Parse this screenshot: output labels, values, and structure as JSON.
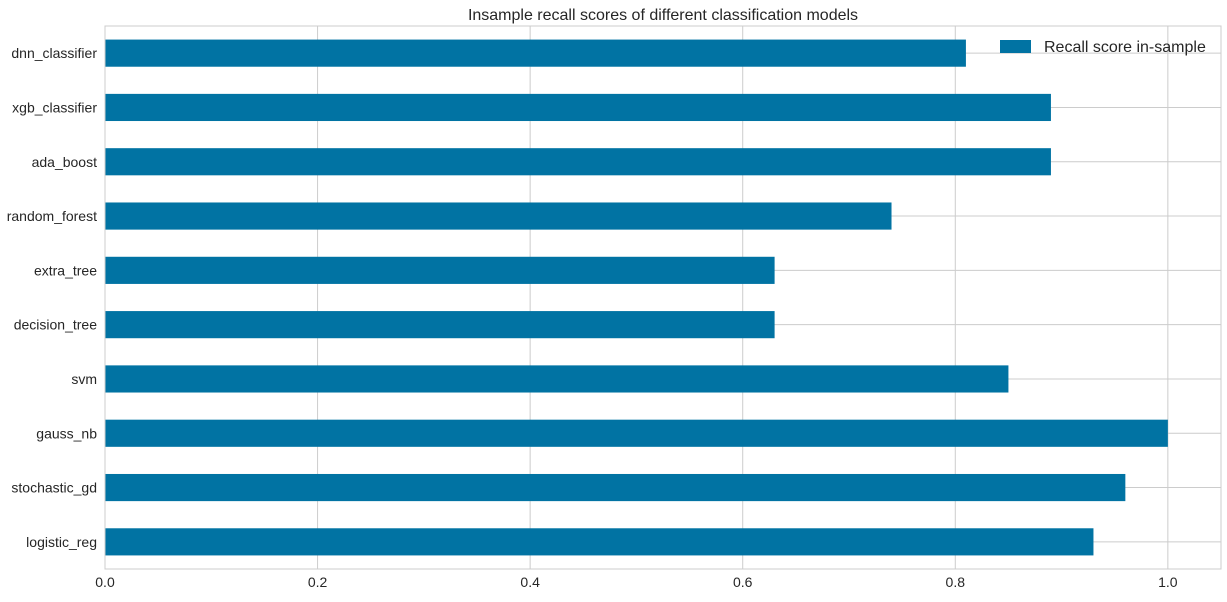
{
  "chart_data": {
    "type": "bar",
    "orientation": "horizontal",
    "title": "Insample recall scores of different classification models",
    "xlabel": "",
    "ylabel": "",
    "categories": [
      "logistic_reg",
      "stochastic_gd",
      "gauss_nb",
      "svm",
      "decision_tree",
      "extra_tree",
      "random_forest",
      "ada_boost",
      "xgb_classifier",
      "dnn_classifier"
    ],
    "series": [
      {
        "name": "Recall score in-sample",
        "color": "#0173a3",
        "values": [
          0.93,
          0.96,
          1.0,
          0.85,
          0.63,
          0.63,
          0.74,
          0.89,
          0.89,
          0.81
        ]
      }
    ],
    "xlim": [
      0,
      1.05
    ],
    "xticks": [
      0.0,
      0.2,
      0.4,
      0.6,
      0.8,
      1.0
    ],
    "xtick_labels": [
      "0.0",
      "0.2",
      "0.4",
      "0.6",
      "0.8",
      "1.0"
    ],
    "grid": true,
    "legend_position": "top-right"
  }
}
